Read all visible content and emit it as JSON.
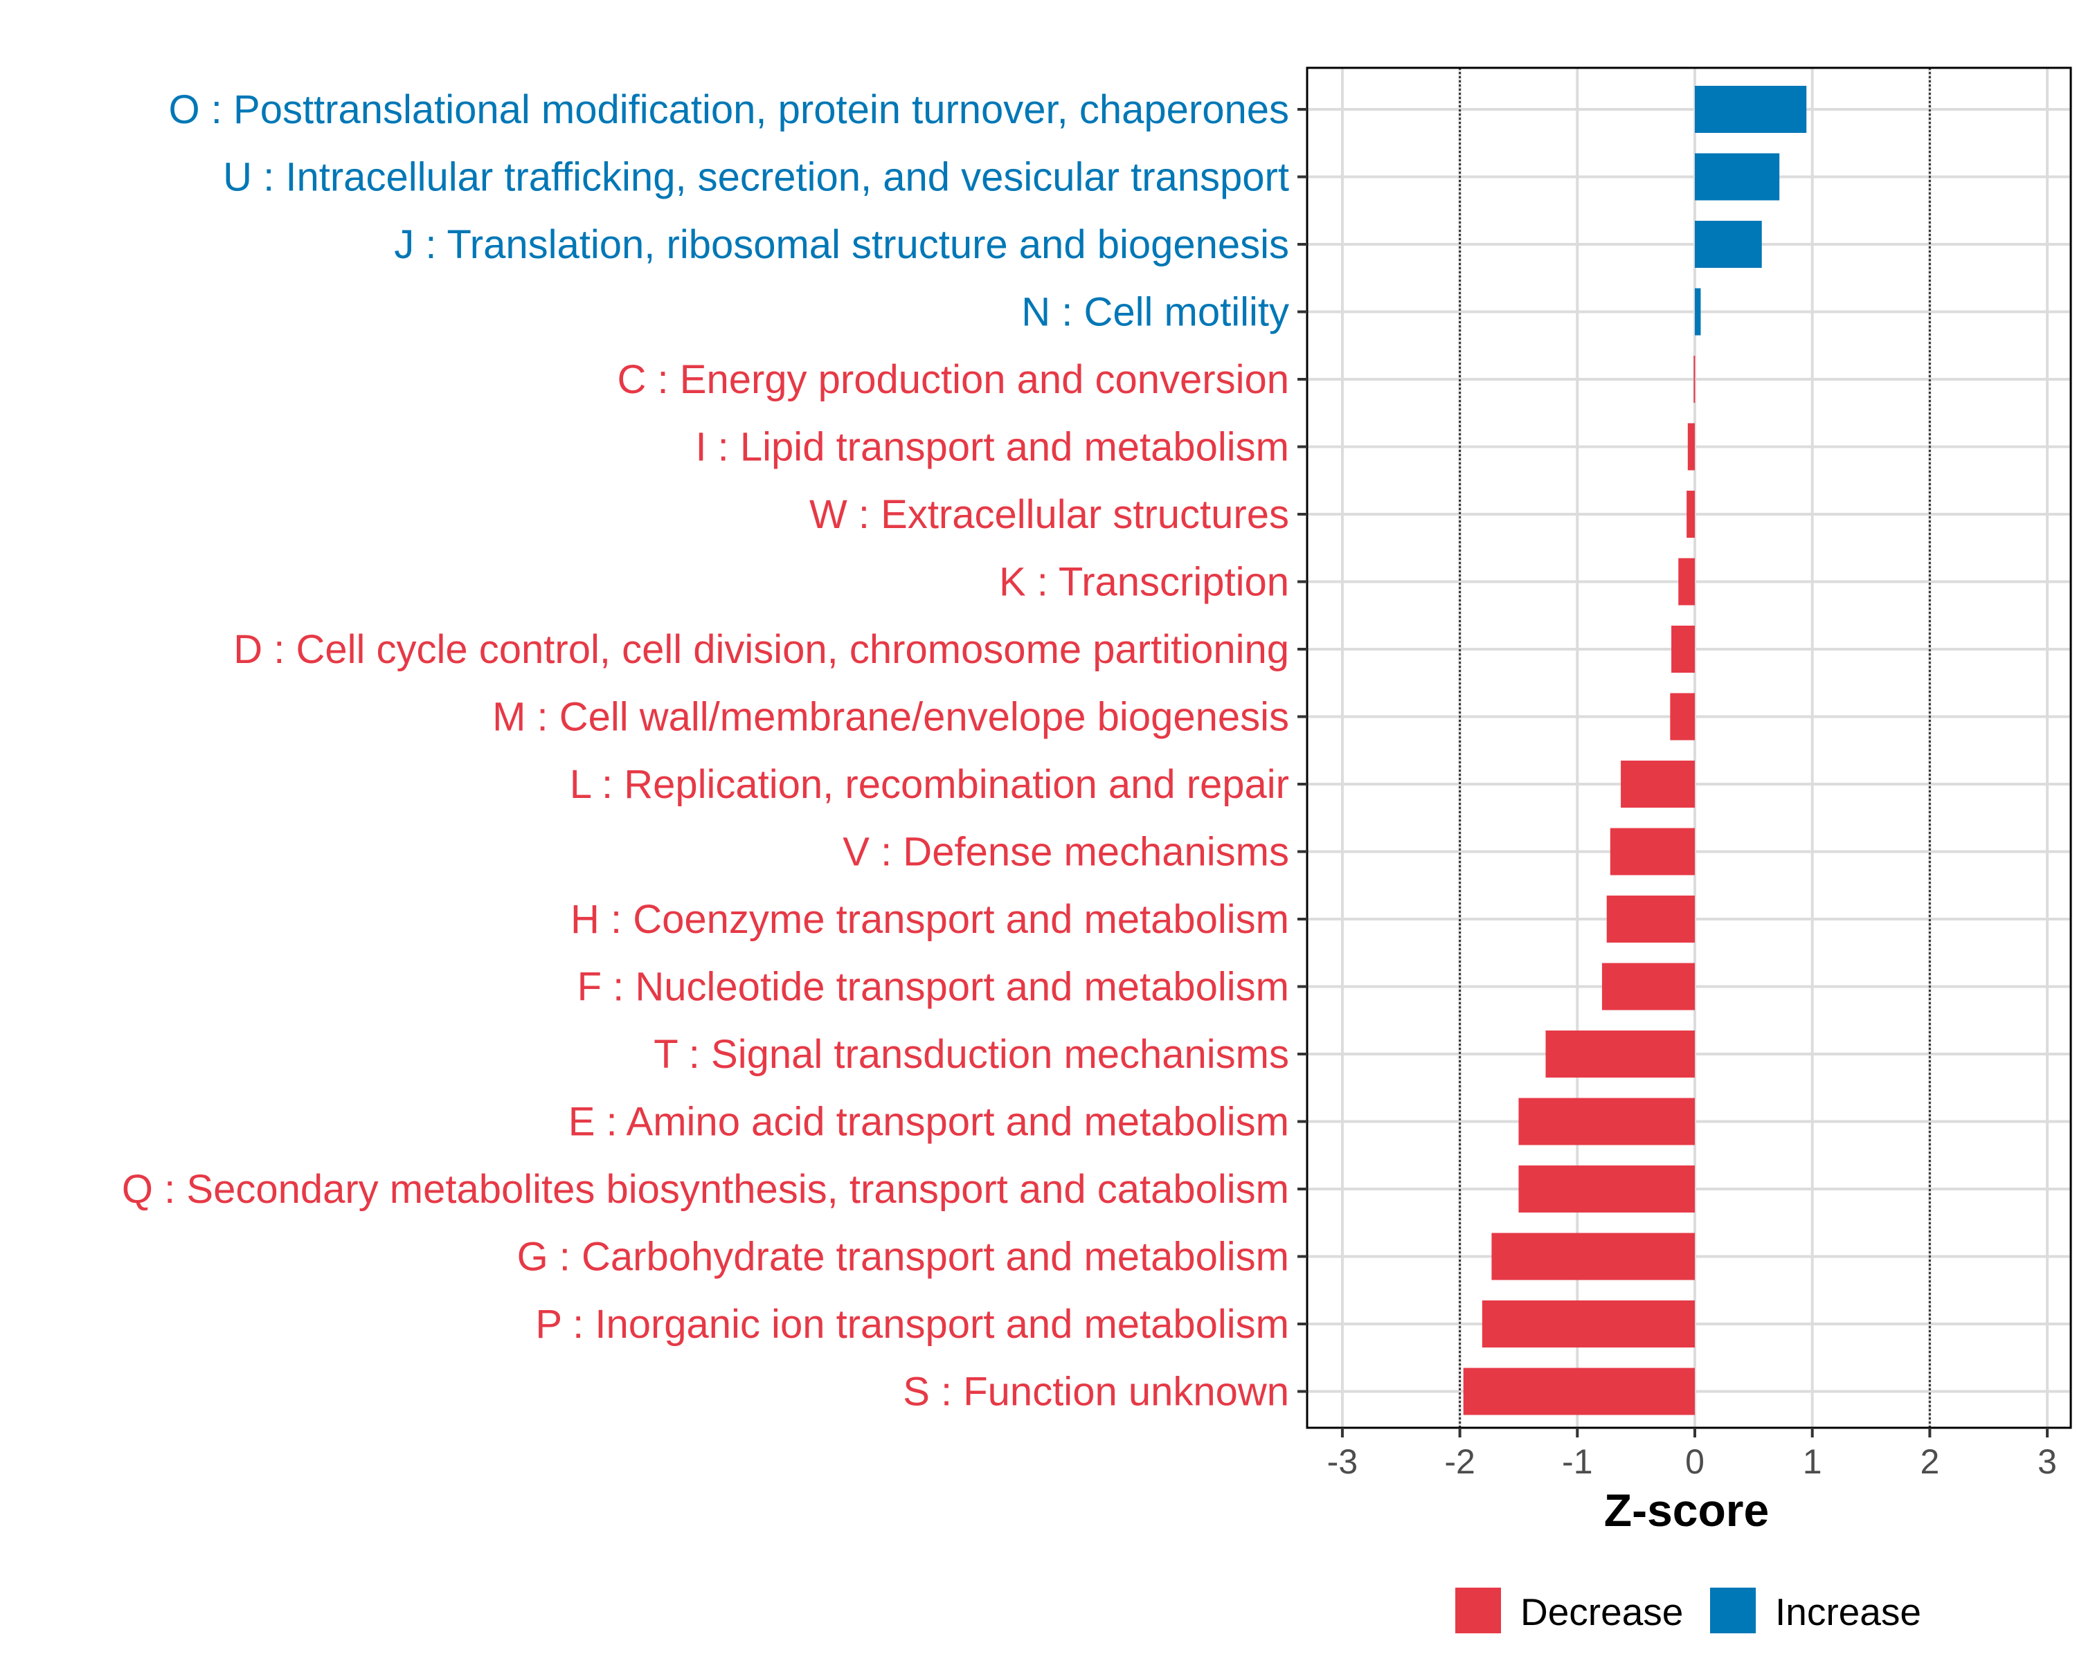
{
  "chart_data": {
    "type": "bar",
    "orientation": "horizontal",
    "title": "",
    "xlabel": "Z-score",
    "ylabel": "",
    "xlim": [
      -3.3,
      3.2
    ],
    "xticks": [
      -3,
      -2,
      -1,
      0,
      1,
      2,
      3
    ],
    "xtick_labels": [
      "-3",
      "-2",
      "-1",
      "0",
      "1",
      "2",
      "3"
    ],
    "reference_lines": [
      -2,
      2
    ],
    "grid": true,
    "categories": [
      "O : Posttranslational modification, protein turnover, chaperones",
      "U : Intracellular trafficking, secretion, and vesicular transport",
      "J : Translation, ribosomal structure and biogenesis",
      "N : Cell motility",
      "C : Energy production and conversion",
      "I : Lipid transport and metabolism",
      "W : Extracellular structures",
      "K : Transcription",
      "D : Cell cycle control, cell division, chromosome partitioning",
      "M : Cell wall/membrane/envelope biogenesis",
      "L : Replication, recombination and repair",
      "V : Defense mechanisms",
      "H : Coenzyme transport and metabolism",
      "F : Nucleotide transport and metabolism",
      "T : Signal transduction mechanisms",
      "E : Amino acid transport and metabolism",
      "Q : Secondary metabolites biosynthesis, transport and catabolism",
      "G : Carbohydrate transport and metabolism",
      "P : Inorganic ion transport and metabolism",
      "S : Function unknown"
    ],
    "values": [
      0.95,
      0.72,
      0.57,
      0.05,
      -0.01,
      -0.06,
      -0.07,
      -0.14,
      -0.2,
      -0.21,
      -0.63,
      -0.72,
      -0.75,
      -0.79,
      -1.27,
      -1.5,
      -1.5,
      -1.73,
      -1.81,
      -1.97
    ],
    "groups": [
      "Increase",
      "Increase",
      "Increase",
      "Increase",
      "Decrease",
      "Decrease",
      "Decrease",
      "Decrease",
      "Decrease",
      "Decrease",
      "Decrease",
      "Decrease",
      "Decrease",
      "Decrease",
      "Decrease",
      "Decrease",
      "Decrease",
      "Decrease",
      "Decrease",
      "Decrease"
    ],
    "legend": {
      "placement": "bottom",
      "entries": [
        {
          "label": "Decrease",
          "color": "#E63946"
        },
        {
          "label": "Increase",
          "color": "#0077B6"
        }
      ]
    }
  },
  "colors": {
    "decrease": "#E63946",
    "increase": "#0077B6",
    "grid": "#DCDCDC",
    "axis": "#000000",
    "reference_line": "#333333"
  }
}
